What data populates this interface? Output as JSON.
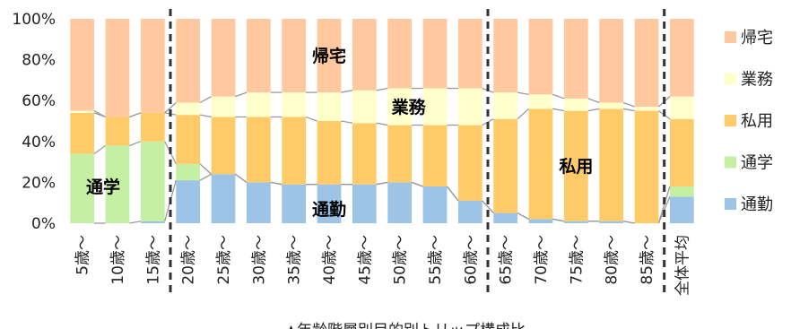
{
  "chart_data": {
    "type": "bar",
    "stacked": true,
    "percent": true,
    "caption": "▲年齢階層別目的別トリップ構成比",
    "categories": [
      "5歳～",
      "10歳～",
      "15歳～",
      "20歳～",
      "25歳～",
      "30歳～",
      "35歳～",
      "40歳～",
      "45歳～",
      "50歳～",
      "55歳～",
      "60歳～",
      "65歳～",
      "70歳～",
      "75歳～",
      "80歳～",
      "85歳～",
      "全体平均"
    ],
    "series": [
      {
        "name": "通勤",
        "color": "#9DC3E6",
        "values": [
          0,
          0,
          1,
          21,
          24,
          20,
          19,
          19,
          19,
          20,
          18,
          11,
          5,
          2,
          1,
          1,
          0,
          13
        ]
      },
      {
        "name": "通学",
        "color": "#C5F0A4",
        "values": [
          34,
          38,
          39,
          8,
          0,
          0,
          0,
          0,
          0,
          0,
          0,
          0,
          0,
          0,
          0,
          0,
          0,
          5
        ]
      },
      {
        "name": "私用",
        "color": "#FFCB69",
        "values": [
          20,
          14,
          14,
          24,
          28,
          32,
          33,
          31,
          30,
          28,
          30,
          37,
          46,
          54,
          54,
          55,
          55,
          33
        ]
      },
      {
        "name": "業務",
        "color": "#FFFFCC",
        "values": [
          1,
          0,
          0,
          6,
          10,
          12,
          12,
          14,
          16,
          18,
          18,
          18,
          13,
          7,
          6,
          3,
          2,
          11
        ]
      },
      {
        "name": "帰宅",
        "color": "#FFC89F",
        "values": [
          45,
          48,
          46,
          41,
          38,
          36,
          36,
          36,
          35,
          34,
          34,
          34,
          36,
          37,
          39,
          41,
          43,
          38
        ]
      }
    ],
    "yticks": [
      "0%",
      "20%",
      "40%",
      "60%",
      "80%",
      "100%"
    ],
    "ylim": [
      0,
      100
    ],
    "legend": {
      "position": "right",
      "order": [
        "帰宅",
        "業務",
        "私用",
        "通学",
        "通勤"
      ]
    },
    "annotations": [
      {
        "text": "帰宅"
      },
      {
        "text": "業務"
      },
      {
        "text": "私用"
      },
      {
        "text": "通学"
      },
      {
        "text": "通勤"
      }
    ],
    "dividers_after_category_index": [
      2,
      11,
      16
    ]
  }
}
